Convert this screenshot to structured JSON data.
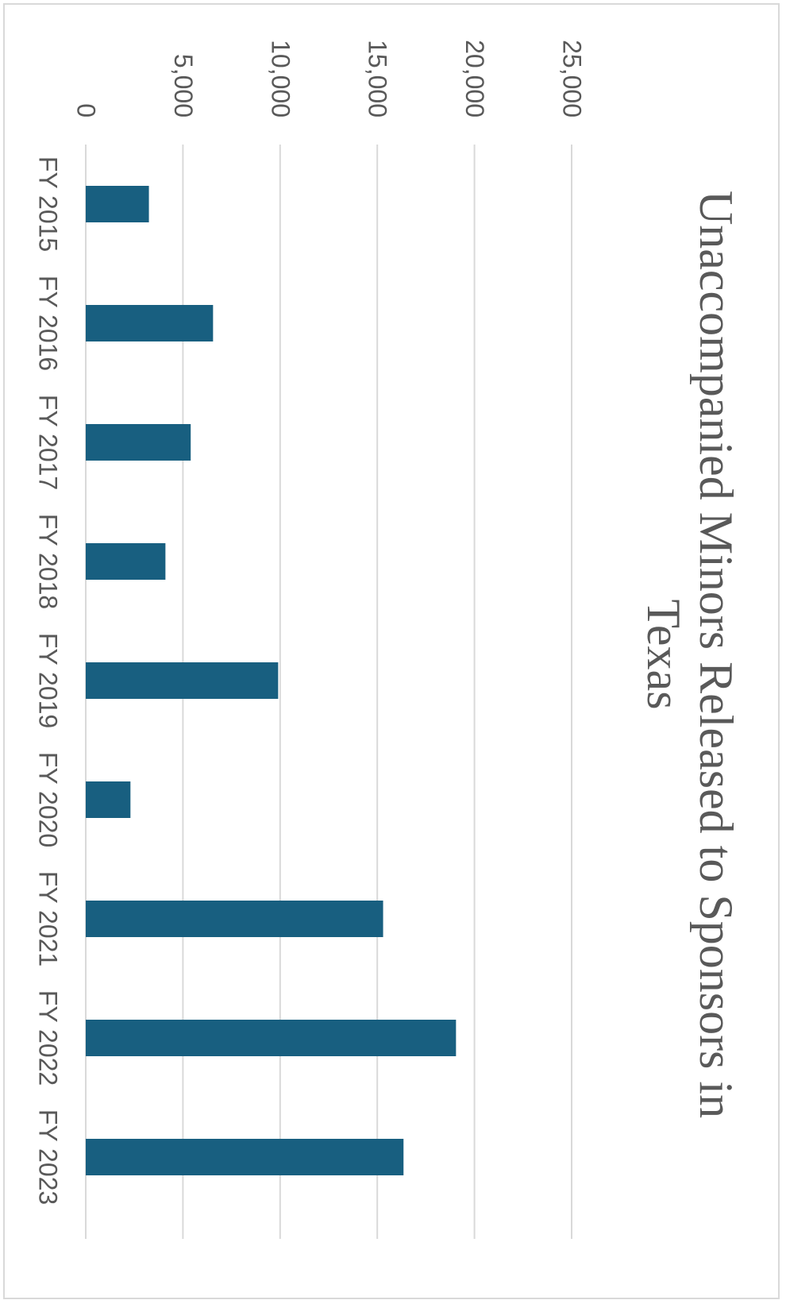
{
  "chart_data": {
    "type": "bar",
    "orientation": "vertical, page rotated 90 degrees clockwise",
    "title": "Unaccompanied Minors Released to Sponsors in Texas",
    "title_lines": [
      "Unaccompanied Minors Released to Sponsors in",
      "Texas"
    ],
    "categories": [
      "FY 2015",
      "FY 2016",
      "FY 2017",
      "FY 2018",
      "FY 2019",
      "FY 2020",
      "FY 2021",
      "FY 2022",
      "FY 2023"
    ],
    "values": [
      3250,
      6550,
      5400,
      4100,
      9900,
      2300,
      15300,
      19050,
      16350
    ],
    "ylim": [
      0,
      25000
    ],
    "yticks": [
      0,
      5000,
      10000,
      15000,
      20000,
      25000
    ],
    "ytick_labels": [
      "0",
      "5,000",
      "10,000",
      "15,000",
      "20,000",
      "25,000"
    ],
    "xlabel": "",
    "ylabel": "",
    "grid": true,
    "legend": "none",
    "bar_color": "#185f80"
  }
}
